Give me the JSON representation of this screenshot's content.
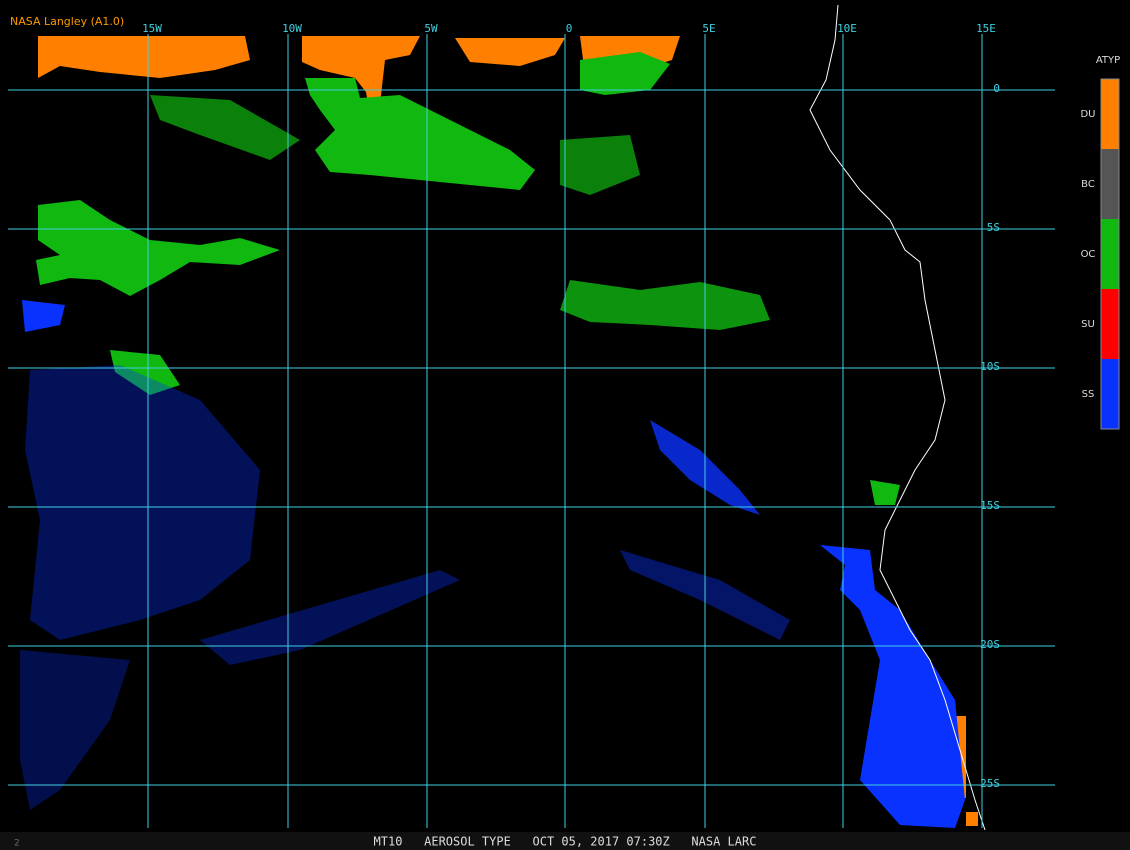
{
  "header": {
    "credit": "NASA Langley (A1.0)",
    "footer": "MT10   AEROSOL TYPE   OCT 05, 2017 07:30Z   NASA LARC",
    "corner": "2"
  },
  "map": {
    "longitude_labels": [
      "15W",
      "10W",
      "5W",
      "0",
      "5E",
      "10E",
      "15E"
    ],
    "latitude_labels": [
      "0",
      "5S",
      "10S",
      "15S",
      "20S",
      "25S"
    ]
  },
  "legend": {
    "title": "ATYP",
    "items": [
      {
        "label": "DU",
        "color": "#ff8000"
      },
      {
        "label": "BC",
        "color": "#555555"
      },
      {
        "label": "OC",
        "color": "#10b810"
      },
      {
        "label": "SU",
        "color": "#ff0000"
      },
      {
        "label": "SS",
        "color": "#0a32ff"
      }
    ]
  }
}
